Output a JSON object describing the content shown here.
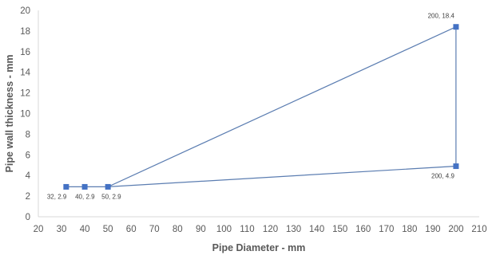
{
  "chart_data": {
    "type": "scatter",
    "title": "",
    "xlabel": "Pipe Diameter - mm",
    "ylabel": "Pipe wall thickness - mm",
    "xlim": [
      20,
      210
    ],
    "ylim": [
      0,
      20
    ],
    "x_ticks": [
      20,
      30,
      40,
      50,
      60,
      70,
      80,
      90,
      100,
      110,
      120,
      130,
      140,
      150,
      160,
      170,
      180,
      190,
      200,
      210
    ],
    "y_ticks": [
      0,
      2,
      4,
      6,
      8,
      10,
      12,
      14,
      16,
      18,
      20
    ],
    "grid": false,
    "legend": "none",
    "series_color": "#4472C4",
    "line_color": "#5B7DB1",
    "series": [
      {
        "points": [
          {
            "x": 32,
            "y": 2.9,
            "label": "32, 2.9"
          },
          {
            "x": 40,
            "y": 2.9,
            "label": "40, 2.9"
          },
          {
            "x": 50,
            "y": 2.9,
            "label": "50, 2.9"
          },
          {
            "x": 200,
            "y": 18.4,
            "label": "200, 18.4"
          },
          {
            "x": 200,
            "y": 4.9,
            "label": "200, 4.9"
          },
          {
            "x": 50,
            "y": 2.9
          }
        ]
      }
    ]
  }
}
